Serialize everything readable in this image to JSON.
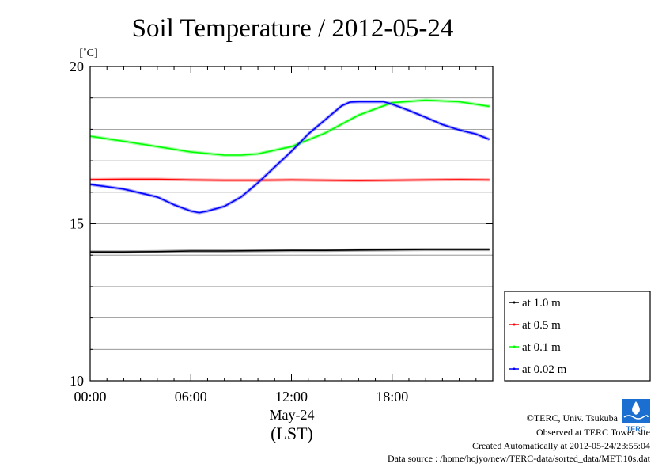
{
  "chart_data": {
    "type": "line",
    "title": "Soil Temperature / 2012-05-24",
    "ylabel": "[˚C]",
    "xlabel_date": "May-24",
    "xlabel": "(LST)",
    "ylim": [
      10,
      20
    ],
    "xlim": [
      0,
      24
    ],
    "y_ticks": [
      "10",
      "15",
      "20"
    ],
    "y_tick_values": [
      10,
      15,
      20
    ],
    "y_gridlines": [
      11,
      12,
      13,
      14,
      15,
      16,
      17,
      18,
      19
    ],
    "x_ticks": [
      "00:00",
      "06:00",
      "12:00",
      "18:00"
    ],
    "x_tick_values": [
      0,
      6,
      12,
      18
    ],
    "legend_position": "right, lower",
    "series": [
      {
        "name": "at 1.0 m",
        "color": "#000000",
        "x": [
          0,
          2,
          4,
          6,
          8,
          10,
          12,
          14,
          16,
          18,
          20,
          22,
          23.8
        ],
        "y": [
          14.1,
          14.1,
          14.11,
          14.13,
          14.13,
          14.14,
          14.15,
          14.15,
          14.16,
          14.17,
          14.18,
          14.18,
          14.18
        ]
      },
      {
        "name": "at 0.5 m",
        "color": "#ff0000",
        "x": [
          0,
          2,
          4,
          6,
          8,
          10,
          12,
          14,
          16,
          18,
          20,
          22,
          23.8
        ],
        "y": [
          16.4,
          16.41,
          16.41,
          16.39,
          16.38,
          16.38,
          16.39,
          16.38,
          16.37,
          16.38,
          16.39,
          16.4,
          16.39
        ]
      },
      {
        "name": "at 0.1 m",
        "color": "#00ff00",
        "x": [
          0,
          2,
          4,
          6,
          8,
          9,
          10,
          12,
          14,
          16,
          18,
          20,
          22,
          23.8
        ],
        "y": [
          17.78,
          17.62,
          17.45,
          17.28,
          17.18,
          17.18,
          17.22,
          17.45,
          17.88,
          18.45,
          18.85,
          18.93,
          18.88,
          18.73
        ]
      },
      {
        "name": "at 0.02 m",
        "color": "#0000ff",
        "x": [
          0,
          2,
          4,
          5,
          6,
          6.5,
          7,
          8,
          9,
          10,
          11,
          12,
          13,
          14,
          15,
          15.5,
          16,
          17,
          17.5,
          18,
          19,
          20,
          21,
          22,
          23,
          23.8
        ],
        "y": [
          16.25,
          16.1,
          15.85,
          15.6,
          15.4,
          15.35,
          15.4,
          15.55,
          15.85,
          16.3,
          16.8,
          17.3,
          17.85,
          18.3,
          18.75,
          18.87,
          18.88,
          18.88,
          18.88,
          18.8,
          18.6,
          18.38,
          18.15,
          17.98,
          17.85,
          17.68
        ]
      }
    ]
  },
  "credits": {
    "copyright": "©TERC, Univ. Tsukuba",
    "site": "Observed at TERC Tower site",
    "created": "Created Automatically at 2012-05-24/23:55:04",
    "source": "Data source : /home/hojyo/new/TERC-data/sorted_data/MET.10s.dat"
  },
  "logo": {
    "text": "TERC",
    "color": "#1a6fd0"
  }
}
